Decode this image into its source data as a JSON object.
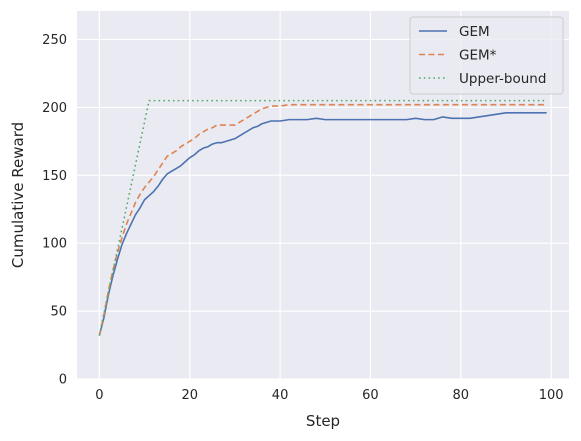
{
  "chart_data": {
    "type": "line",
    "title": "",
    "xlabel": "Step",
    "ylabel": "Cumulative Reward",
    "xlim": [
      -4.95,
      103.95
    ],
    "ylim": [
      0,
      271
    ],
    "xticks": [
      0,
      20,
      40,
      60,
      80,
      100
    ],
    "yticks": [
      0,
      50,
      100,
      150,
      200,
      250
    ],
    "grid": true,
    "legend_position": "top-right",
    "series": [
      {
        "name": "GEM",
        "color": "#4c72b0",
        "linestyle": "solid",
        "x": [
          0,
          1,
          2,
          3,
          4,
          5,
          6,
          7,
          8,
          9,
          10,
          11,
          12,
          13,
          14,
          15,
          16,
          17,
          18,
          19,
          20,
          21,
          22,
          23,
          24,
          25,
          26,
          27,
          28,
          29,
          30,
          31,
          32,
          33,
          34,
          35,
          36,
          37,
          38,
          39,
          40,
          42,
          44,
          46,
          48,
          50,
          52,
          54,
          56,
          58,
          60,
          62,
          64,
          66,
          68,
          70,
          72,
          74,
          76,
          78,
          80,
          82,
          84,
          86,
          88,
          90,
          92,
          94,
          96,
          98,
          99
        ],
        "y": [
          32,
          45,
          62,
          76,
          88,
          99,
          107,
          114,
          121,
          126,
          132,
          135,
          138,
          142,
          147,
          151,
          153,
          155,
          157,
          160,
          163,
          165,
          168,
          170,
          171,
          173,
          174,
          174,
          175,
          176,
          177,
          179,
          181,
          183,
          185,
          186,
          188,
          189,
          190,
          190,
          190,
          191,
          191,
          191,
          192,
          191,
          191,
          191,
          191,
          191,
          191,
          191,
          191,
          191,
          191,
          192,
          191,
          191,
          193,
          192,
          192,
          192,
          193,
          194,
          195,
          196,
          196,
          196,
          196,
          196,
          196
        ]
      },
      {
        "name": "GEM*",
        "color": "#dd8452",
        "linestyle": "dashed",
        "x": [
          0,
          1,
          2,
          3,
          4,
          5,
          6,
          7,
          8,
          9,
          10,
          11,
          12,
          13,
          14,
          15,
          16,
          17,
          18,
          19,
          20,
          21,
          22,
          23,
          24,
          25,
          26,
          27,
          28,
          29,
          30,
          31,
          32,
          33,
          34,
          35,
          36,
          37,
          38,
          39,
          40,
          42,
          44,
          46,
          48,
          50,
          60,
          70,
          80,
          90,
          99
        ],
        "y": [
          32,
          47,
          65,
          80,
          93,
          104,
          114,
          122,
          130,
          136,
          141,
          145,
          149,
          154,
          159,
          164,
          166,
          168,
          171,
          173,
          175,
          177,
          180,
          182,
          184,
          185,
          187,
          187,
          187,
          187,
          187,
          189,
          191,
          193,
          195,
          197,
          199,
          200,
          201,
          201,
          201,
          202,
          202,
          202,
          202,
          202,
          202,
          202,
          202,
          202,
          202
        ]
      },
      {
        "name": "Upper-bound",
        "color": "#55a868",
        "linestyle": "dotted",
        "x": [
          0,
          11,
          20,
          40,
          60,
          80,
          99
        ],
        "y": [
          32,
          205,
          205,
          205,
          205,
          205,
          205
        ]
      }
    ]
  }
}
